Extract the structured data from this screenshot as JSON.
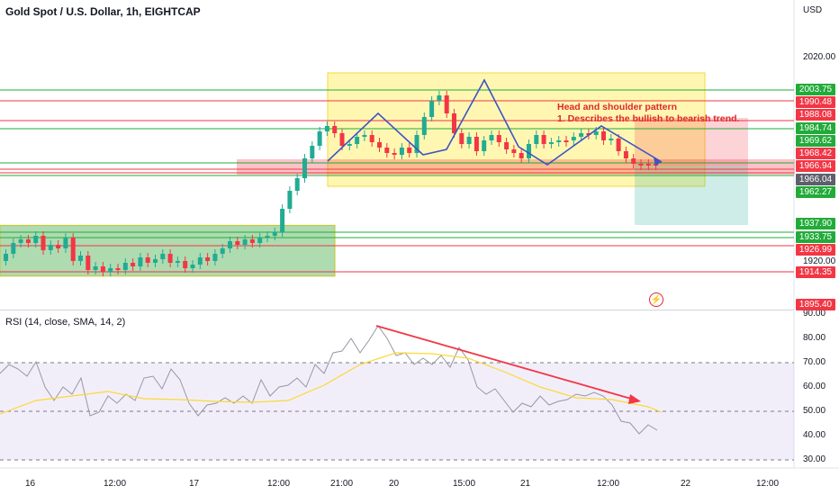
{
  "header": {
    "title": "Gold Spot / U.S. Dollar, 1h, EIGHTCAP",
    "currency": "USD"
  },
  "annotation": {
    "line1": "Head and shoulder pattern",
    "line2": "1. Describes the bullish to bearish trend."
  },
  "rsi_label": "RSI (14, close, SMA, 14, 2)",
  "price_axis": {
    "ticks": [
      "2020.00",
      "1920.00"
    ]
  },
  "rsi_axis": {
    "ticks": [
      "90.00",
      "80.00",
      "70.00",
      "60.00",
      "50.00",
      "40.00",
      "30.00"
    ]
  },
  "time_axis": {
    "ticks": [
      "16",
      "12:00",
      "17",
      "12:00",
      "21:00",
      "20",
      "15:00",
      "21",
      "12:00",
      "22",
      "12:00"
    ]
  },
  "price_badges": [
    {
      "label": "2003.75",
      "color": "#22ab3a"
    },
    {
      "label": "1990.48",
      "color": "#f23645"
    },
    {
      "label": "1988.08",
      "color": "#f23645"
    },
    {
      "label": "1984.74",
      "color": "#22ab3a"
    },
    {
      "label": "1969.62",
      "color": "#22ab3a"
    },
    {
      "label": "1968.42",
      "color": "#f23645"
    },
    {
      "label": "1966.94",
      "color": "#f23645"
    },
    {
      "label": "1966.04",
      "color": "#5d606b"
    },
    {
      "label": "1962.27",
      "color": "#22ab3a"
    },
    {
      "label": "1937.90",
      "color": "#22ab3a"
    },
    {
      "label": "1933.75",
      "color": "#22ab3a"
    },
    {
      "label": "1926.99",
      "color": "#f23645"
    },
    {
      "label": "1914.35",
      "color": "#f23645"
    },
    {
      "label": "1895.40",
      "color": "#f23645"
    }
  ],
  "colors": {
    "up": "#22ab94",
    "down": "#f23645",
    "pattern": "#3d54c4",
    "rsi_line": "#7e57c2",
    "rsi_ma": "#fdd835",
    "trend_arrow": "#f23645"
  },
  "chart_data": {
    "type": "candlestick",
    "title": "Gold Spot / U.S. Dollar, 1h, EIGHTCAP",
    "horizontal_levels": [
      2003.75,
      1990.48,
      1988.08,
      1984.74,
      1969.62,
      1968.42,
      1966.94,
      1962.27,
      1937.9,
      1933.75,
      1926.99,
      1914.35
    ],
    "last_price": 1966.04,
    "rsi": {
      "upper_band": 70,
      "mid": 50,
      "lower_band": 30,
      "ylim": [
        30,
        90
      ]
    }
  }
}
